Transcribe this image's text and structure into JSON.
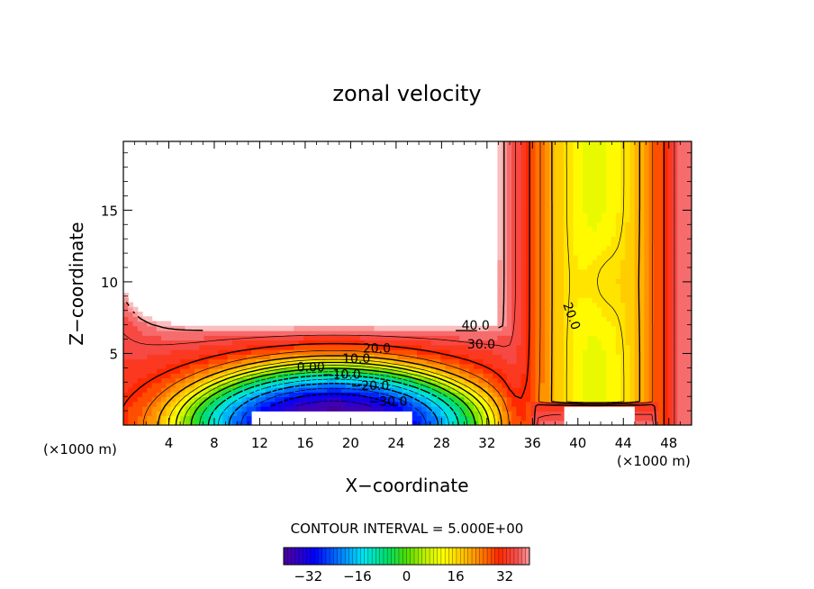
{
  "chart_data": {
    "type": "contour",
    "title": "zonal velocity",
    "xlabel": "X−coordinate",
    "ylabel": "Z−coordinate",
    "x_unit_left": "(×1000 m)",
    "x_unit_right": "(×1000 m)",
    "xlim": [
      0,
      50
    ],
    "ylim": [
      0,
      19.8
    ],
    "x_ticks": [
      4,
      8,
      12,
      16,
      20,
      24,
      28,
      32,
      36,
      40,
      44,
      48
    ],
    "x_tick_labels": [
      "4",
      "8",
      "12",
      "16",
      "20",
      "24",
      "28",
      "32",
      "36",
      "40",
      "44",
      "48"
    ],
    "y_ticks": [
      5,
      10,
      15
    ],
    "y_tick_labels": [
      "5",
      "10",
      "15"
    ],
    "contour_interval_text": "CONTOUR INTERVAL = 5.000E+00",
    "contour_labels": [
      {
        "text": "40.0",
        "x": 31,
        "y": 6.9
      },
      {
        "text": "30.0",
        "x": 31.5,
        "y": 5.6
      },
      {
        "text": "20.0",
        "x": 22.3,
        "y": 5.3
      },
      {
        "text": "10.0",
        "x": 20.5,
        "y": 4.6
      },
      {
        "text": "0.00",
        "x": 16.5,
        "y": 4.0
      },
      {
        "text": "−10.0",
        "x": 19.2,
        "y": 3.5
      },
      {
        "text": "−20.0",
        "x": 21.7,
        "y": 2.7
      },
      {
        "text": "−30.0",
        "x": 23.3,
        "y": 1.6
      },
      {
        "text": "20.0",
        "x": 39.4,
        "y": 7.6
      }
    ],
    "colorbar": {
      "range": [
        -40,
        40
      ],
      "ticks": [
        -32,
        -16,
        0,
        16,
        32
      ],
      "tick_labels": [
        "−32",
        "−16",
        "0",
        "16",
        "32"
      ]
    }
  }
}
